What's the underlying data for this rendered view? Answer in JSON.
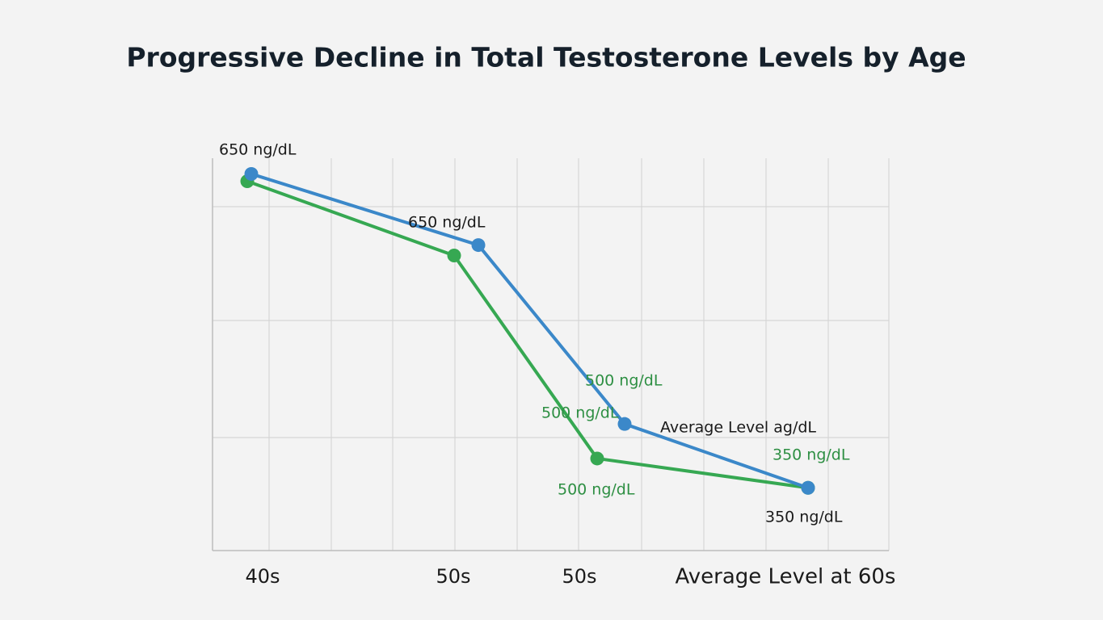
{
  "chart_data": {
    "type": "line",
    "title": "Progressive Decline in Total Testosterone Levels by Age",
    "categories": [
      "40s",
      "50s",
      "50s",
      "Average Level at 60s"
    ],
    "series": [
      {
        "color": "#3b88c9",
        "values": [
          650,
          582,
          411,
          350
        ]
      },
      {
        "color": "#36a852",
        "values": [
          643,
          572,
          378,
          350
        ]
      }
    ],
    "ylim": [
      290,
      665
    ],
    "grid": true,
    "annotations": [
      {
        "text": "650 ng/dL",
        "color": "#1a1a1a"
      },
      {
        "text": "650 ng/dL",
        "color": "#1a1a1a"
      },
      {
        "text": "500 ng/dL",
        "color": "#2e8f43"
      },
      {
        "text": "500 ng/dL",
        "color": "#2e8f43"
      },
      {
        "text": "Average Level ag/dL",
        "color": "#1a1a1a"
      },
      {
        "text": "350 ng/dL",
        "color": "#2e8f43"
      },
      {
        "text": "500 ng/dL",
        "color": "#2e8f43"
      },
      {
        "text": "350 ng/dL",
        "color": "#1a1a1a"
      }
    ]
  }
}
